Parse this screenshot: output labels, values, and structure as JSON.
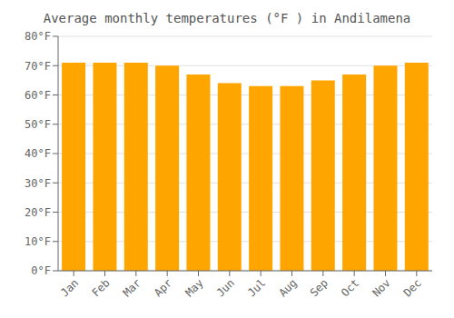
{
  "chart_data": {
    "type": "bar",
    "title": "Average monthly temperatures (°F ) in Andilamena",
    "categories": [
      "Jan",
      "Feb",
      "Mar",
      "Apr",
      "May",
      "Jun",
      "Jul",
      "Aug",
      "Sep",
      "Oct",
      "Nov",
      "Dec"
    ],
    "values": [
      71,
      71,
      71,
      70,
      67,
      64,
      63,
      63,
      65,
      67,
      70,
      71
    ],
    "color": "#FFA500",
    "ylim": [
      0,
      80
    ],
    "yticks": [
      {
        "value": 0,
        "label": "0°F"
      },
      {
        "value": 10,
        "label": "10°F"
      },
      {
        "value": 20,
        "label": "20°F"
      },
      {
        "value": 30,
        "label": "30°F"
      },
      {
        "value": 40,
        "label": "40°F"
      },
      {
        "value": 50,
        "label": "50°F"
      },
      {
        "value": 60,
        "label": "60°F"
      },
      {
        "value": 70,
        "label": "70°F"
      },
      {
        "value": 80,
        "label": "80°F"
      }
    ],
    "grid": true
  }
}
